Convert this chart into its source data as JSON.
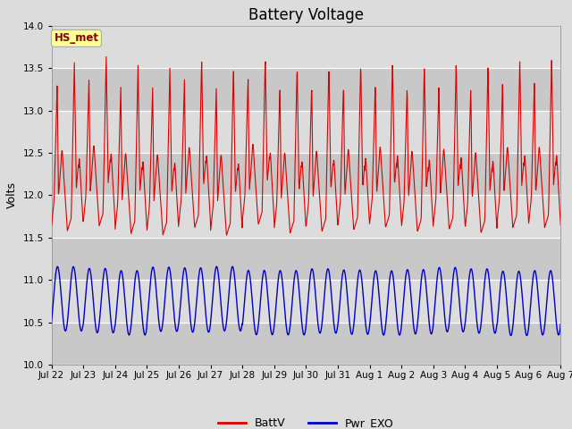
{
  "title": "Battery Voltage",
  "ylabel": "Volts",
  "ylim": [
    10.0,
    14.0
  ],
  "yticks": [
    10.0,
    10.5,
    11.0,
    11.5,
    12.0,
    12.5,
    13.0,
    13.5,
    14.0
  ],
  "bg_light": "#dcdcdc",
  "bg_dark": "#c8c8c8",
  "grid_color": "#ffffff",
  "battv_color": "#dd0000",
  "pwr_exo_color": "#0000cc",
  "legend_battv": "BattV",
  "legend_pwr": "Pwr_EXO",
  "annotation_text": "HS_met",
  "annotation_color": "#8b0000",
  "annotation_bg": "#ffff99",
  "title_fontsize": 12,
  "label_fontsize": 9,
  "tick_fontsize": 7.5
}
